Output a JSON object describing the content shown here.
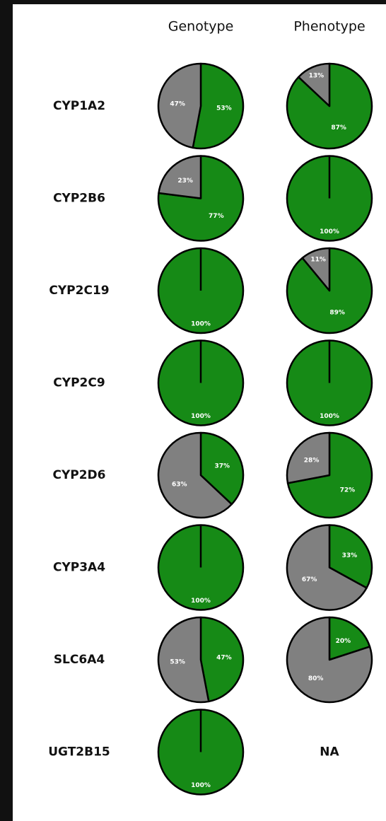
{
  "columns": [
    "Genotype",
    "Phenotype"
  ],
  "rows": [
    "CYP1A2",
    "CYP2B6",
    "CYP2C19",
    "CYP2C9",
    "CYP2D6",
    "CYP3A4",
    "SLC6A4",
    "UGT2B15"
  ],
  "na_label": "NA",
  "chart_data": [
    {
      "type": "pie",
      "values": [
        53,
        47
      ],
      "value_labels": [
        "53%",
        "47%"
      ],
      "colors": [
        "#168a16",
        "#808080"
      ]
    },
    {
      "type": "pie",
      "values": [
        87,
        13
      ],
      "value_labels": [
        "87%",
        "13%"
      ],
      "colors": [
        "#168a16",
        "#808080"
      ]
    },
    {
      "type": "pie",
      "values": [
        77,
        23
      ],
      "value_labels": [
        "77%",
        "23%"
      ],
      "colors": [
        "#168a16",
        "#808080"
      ]
    },
    {
      "type": "pie",
      "values": [
        100
      ],
      "value_labels": [
        "100%"
      ],
      "colors": [
        "#168a16"
      ]
    },
    {
      "type": "pie",
      "values": [
        100
      ],
      "value_labels": [
        "100%"
      ],
      "colors": [
        "#168a16"
      ]
    },
    {
      "type": "pie",
      "values": [
        89,
        11
      ],
      "value_labels": [
        "89%",
        "11%"
      ],
      "colors": [
        "#168a16",
        "#808080"
      ]
    },
    {
      "type": "pie",
      "values": [
        100
      ],
      "value_labels": [
        "100%"
      ],
      "colors": [
        "#168a16"
      ]
    },
    {
      "type": "pie",
      "values": [
        100
      ],
      "value_labels": [
        "100%"
      ],
      "colors": [
        "#168a16"
      ]
    },
    {
      "type": "pie",
      "values": [
        37,
        63
      ],
      "value_labels": [
        "37%",
        "63%"
      ],
      "colors": [
        "#168a16",
        "#808080"
      ]
    },
    {
      "type": "pie",
      "values": [
        72,
        28
      ],
      "value_labels": [
        "72%",
        "28%"
      ],
      "colors": [
        "#168a16",
        "#808080"
      ]
    },
    {
      "type": "pie",
      "values": [
        100
      ],
      "value_labels": [
        "100%"
      ],
      "colors": [
        "#168a16"
      ]
    },
    {
      "type": "pie",
      "values": [
        33,
        67
      ],
      "value_labels": [
        "33%",
        "67%"
      ],
      "colors": [
        "#168a16",
        "#808080"
      ]
    },
    {
      "type": "pie",
      "values": [
        47,
        53
      ],
      "value_labels": [
        "47%",
        "53%"
      ],
      "colors": [
        "#168a16",
        "#808080"
      ]
    },
    {
      "type": "pie",
      "values": [
        20,
        80
      ],
      "value_labels": [
        "20%",
        "80%"
      ],
      "colors": [
        "#168a16",
        "#808080"
      ]
    },
    {
      "type": "pie",
      "values": [
        100
      ],
      "value_labels": [
        "100%"
      ],
      "colors": [
        "#168a16"
      ]
    }
  ]
}
